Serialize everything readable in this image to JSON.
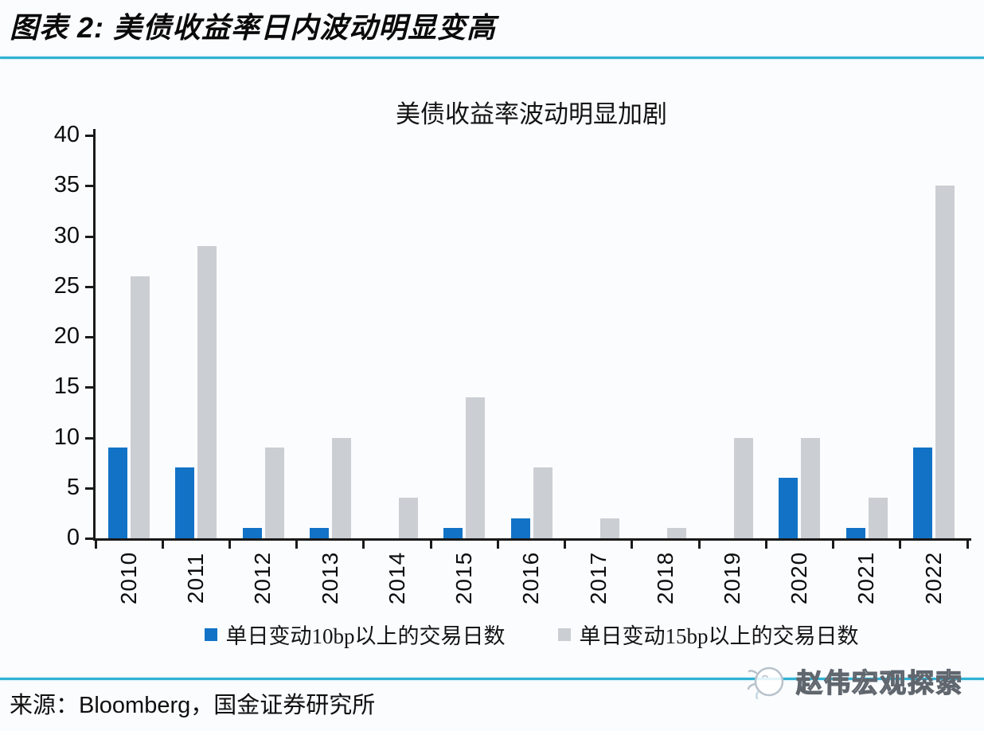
{
  "page": {
    "header_title": "图表 2: 美债收益率日内波动明显变高",
    "source_label": "来源：",
    "source_text": "Bloomberg，国金证券研究所",
    "watermark_text": "赵伟宏观探索",
    "accent_line_color": "#32b2d4"
  },
  "chart_data": {
    "type": "bar",
    "title": "美债收益率波动明显加剧",
    "categories": [
      "2010",
      "2011",
      "2012",
      "2013",
      "2014",
      "2015",
      "2016",
      "2017",
      "2018",
      "2019",
      "2020",
      "2021",
      "2022"
    ],
    "series": [
      {
        "name": "单日变动10bp以上的交易日数",
        "color": "#1273c6",
        "values": [
          9,
          7,
          1,
          1,
          0,
          1,
          2,
          0,
          0,
          0,
          6,
          1,
          9
        ]
      },
      {
        "name": "单日变动15bp以上的交易日数",
        "color": "#cbced2",
        "values": [
          26,
          29,
          9,
          10,
          4,
          14,
          7,
          2,
          1,
          10,
          10,
          4,
          35
        ]
      }
    ],
    "xlabel": "",
    "ylabel": "",
    "ylim": [
      0,
      40
    ],
    "ytick_step": 5,
    "grid": false,
    "legend_position": "bottom"
  }
}
